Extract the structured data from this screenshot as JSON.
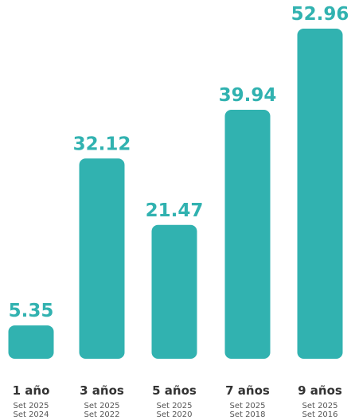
{
  "chart_data": {
    "type": "bar",
    "categories": [
      "1 año",
      "3 años",
      "5 años",
      "7 años",
      "9 años"
    ],
    "values": [
      5.35,
      32.12,
      21.47,
      39.94,
      52.96
    ],
    "value_labels": [
      "5.35",
      "32.12",
      "21.47",
      "39.94",
      "52.96"
    ],
    "date_ranges": [
      [
        "Set 2025",
        "Set 2024"
      ],
      [
        "Set 2025",
        "Set 2022"
      ],
      [
        "Set 2025",
        "Set 2020"
      ],
      [
        "Set 2025",
        "Set 2018"
      ],
      [
        "Set 2025",
        "Set 2016"
      ]
    ],
    "title": "",
    "xlabel": "",
    "ylabel": "",
    "ylim": [
      0,
      52.96
    ],
    "grid": false,
    "bar_color": "#31b2b0",
    "label_color": "#31b2b0"
  }
}
